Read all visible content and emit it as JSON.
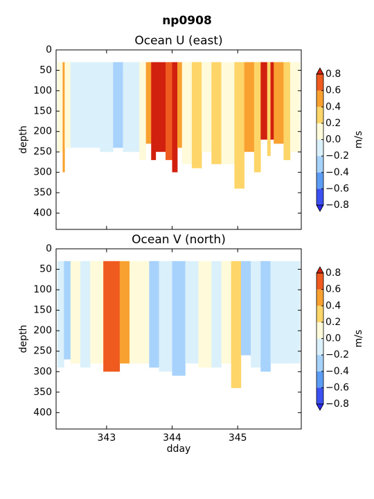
{
  "suptitle": "np0908",
  "chart_data": [
    {
      "type": "contourf",
      "title": "Ocean U (east)",
      "ylabel": "depth",
      "x_edges": [
        342.25,
        342.33,
        342.36,
        342.45,
        342.9,
        343.1,
        343.25,
        343.5,
        343.6,
        343.68,
        343.75,
        343.9,
        344.0,
        344.08,
        344.15,
        344.3,
        344.45,
        344.6,
        344.75,
        344.95,
        345.1,
        345.25,
        345.35,
        345.45,
        345.5,
        345.55,
        345.7,
        345.8,
        345.95
      ],
      "depth_top": 30,
      "depth_bottom": [
        250,
        300,
        240,
        240,
        250,
        240,
        250,
        270,
        230,
        270,
        250,
        270,
        300,
        240,
        280,
        290,
        250,
        280,
        280,
        340,
        250,
        300,
        220,
        260,
        220,
        230,
        270,
        250
      ],
      "values": [
        0.1,
        0.5,
        0.1,
        -0.1,
        -0.1,
        -0.3,
        -0.1,
        0.1,
        0.5,
        0.9,
        0.9,
        0.7,
        0.9,
        0.5,
        0.1,
        0.3,
        0.1,
        0.3,
        0.1,
        0.3,
        0.5,
        0.3,
        0.9,
        0.3,
        0.9,
        0.5,
        0.3,
        0.1
      ],
      "xlim": [
        342.23,
        345.97
      ],
      "ylim": [
        440,
        0
      ],
      "xticks": [
        343,
        344,
        345
      ],
      "xtick_labels": false,
      "yticks": [
        0,
        50,
        100,
        150,
        200,
        250,
        300,
        350,
        400
      ],
      "levels": [
        -0.8,
        -0.6,
        -0.4,
        -0.2,
        0,
        0.2,
        0.4,
        0.6,
        0.8
      ],
      "colors": [
        "#3c4ff0",
        "#5d9cf5",
        "#a7d2fb",
        "#daf0fb",
        "#fffad9",
        "#fdd568",
        "#f9a130",
        "#ef5a1e"
      ],
      "extend_colors": [
        "#2a2af0",
        "#d2200f"
      ],
      "cbar_label": "m/s",
      "cbar_ticks": [
        {
          "value": -0.8,
          "label": "−0.8"
        },
        {
          "value": -0.6,
          "label": "−0.6"
        },
        {
          "value": -0.4,
          "label": "−0.4"
        },
        {
          "value": -0.2,
          "label": "−0.2"
        },
        {
          "value": 0,
          "label": "0.0"
        },
        0.2,
        0.4,
        0.6,
        0.8
      ]
    },
    {
      "type": "contourf",
      "title": "Ocean V (north)",
      "ylabel": "depth",
      "xlabel": "dday",
      "x_edges": [
        342.25,
        342.35,
        342.45,
        342.6,
        342.75,
        342.95,
        343.2,
        343.35,
        343.65,
        343.8,
        344.0,
        344.2,
        344.4,
        344.6,
        344.75,
        344.9,
        345.05,
        345.2,
        345.35,
        345.5,
        345.65,
        345.95
      ],
      "depth_top": 30,
      "depth_bottom": [
        290,
        270,
        280,
        290,
        280,
        300,
        280,
        280,
        290,
        300,
        310,
        280,
        290,
        290,
        280,
        340,
        260,
        290,
        300,
        280,
        280
      ],
      "values": [
        -0.1,
        -0.3,
        0.1,
        -0.1,
        0.1,
        0.7,
        0.5,
        0.1,
        -0.3,
        -0.1,
        -0.3,
        -0.1,
        0.1,
        -0.1,
        0.1,
        0.3,
        -0.3,
        -0.1,
        -0.3,
        -0.1,
        -0.1
      ],
      "xlim": [
        342.23,
        345.97
      ],
      "ylim": [
        440,
        0
      ],
      "xticks": [
        343,
        344,
        345
      ],
      "xtick_labels": true,
      "yticks": [
        0,
        50,
        100,
        150,
        200,
        250,
        300,
        350,
        400
      ],
      "levels": [
        -0.8,
        -0.6,
        -0.4,
        -0.2,
        0,
        0.2,
        0.4,
        0.6,
        0.8
      ],
      "colors": [
        "#3c4ff0",
        "#5d9cf5",
        "#a7d2fb",
        "#daf0fb",
        "#fffad9",
        "#fdd568",
        "#f9a130",
        "#ef5a1e"
      ],
      "extend_colors": [
        "#2a2af0",
        "#d2200f"
      ],
      "cbar_label": "m/s",
      "cbar_ticks": [
        {
          "value": -0.8,
          "label": "−0.8"
        },
        {
          "value": -0.6,
          "label": "−0.6"
        },
        {
          "value": -0.4,
          "label": "−0.4"
        },
        {
          "value": -0.2,
          "label": "−0.2"
        },
        {
          "value": 0,
          "label": "0.0"
        },
        0.2,
        0.4,
        0.6,
        0.8
      ]
    }
  ]
}
